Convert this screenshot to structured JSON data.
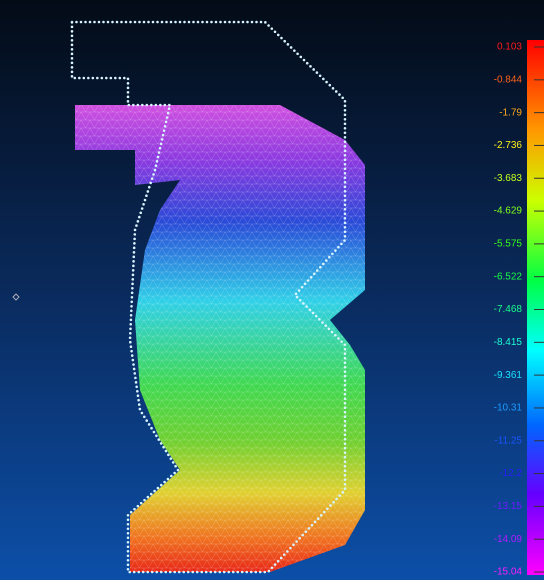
{
  "legend": {
    "labels": [
      "0.103",
      "-0.844",
      "-1.79",
      "-2.736",
      "-3.683",
      "-4.629",
      "-5.575",
      "-6.522",
      "-7.468",
      "-8.415",
      "-9.361",
      "-10.31",
      "-11.25",
      "-12.2",
      "-13.15",
      "-14.09",
      "-15.04"
    ]
  }
}
